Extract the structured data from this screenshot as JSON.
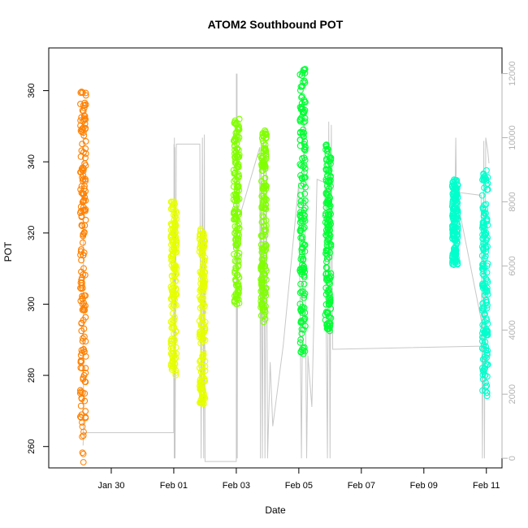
{
  "chart_data": {
    "type": "scatter",
    "title": "ATOM2 Southbound POT",
    "xlabel": "Date",
    "ylabel": "POT",
    "xlim": [
      "2015-01-28T00:00",
      "2015-02-11T12:00"
    ],
    "ylim": [
      254,
      372
    ],
    "x_ticks": [
      {
        "value": "2015-01-30T00:00",
        "label": "Jan 30"
      },
      {
        "value": "2015-02-01T00:00",
        "label": "Feb 01"
      },
      {
        "value": "2015-02-03T00:00",
        "label": "Feb 03"
      },
      {
        "value": "2015-02-05T00:00",
        "label": "Feb 05"
      },
      {
        "value": "2015-02-07T00:00",
        "label": "Feb 07"
      },
      {
        "value": "2015-02-09T00:00",
        "label": "Feb 09"
      },
      {
        "value": "2015-02-11T00:00",
        "label": "Feb 11"
      }
    ],
    "y_ticks": [
      260,
      280,
      300,
      320,
      340,
      360
    ],
    "secondary_axis": {
      "ylim": [
        -300,
        12800
      ],
      "ticks": [
        0,
        2000,
        4000,
        6000,
        8000,
        10000,
        12000
      ],
      "color": "#b3b3b3",
      "line_color": "#c8c8c8"
    },
    "grid": false,
    "secondary_line": [
      [
        "2015-01-29T02:24",
        400
      ],
      [
        "2015-01-29T02:29",
        600
      ],
      [
        "2015-01-29T02:34",
        700
      ],
      [
        "2015-01-29T02:38",
        10200
      ],
      [
        "2015-01-29T02:43",
        800
      ],
      [
        "2015-02-01T00:00",
        800
      ],
      [
        "2015-02-01T00:10",
        9800
      ],
      [
        "2015-02-01T00:20",
        0
      ],
      [
        "2015-02-01T00:30",
        10000
      ],
      [
        "2015-02-01T00:40",
        0
      ],
      [
        "2015-02-01T00:50",
        9700
      ],
      [
        "2015-02-01T01:00",
        0
      ],
      [
        "2015-02-01T02:00",
        9800
      ],
      [
        "2015-02-01T10:00",
        9800
      ],
      [
        "2015-02-01T20:00",
        9800
      ],
      [
        "2015-02-01T21:00",
        0
      ],
      [
        "2015-02-01T22:00",
        10000
      ],
      [
        "2015-02-01T23:00",
        0
      ],
      [
        "2015-02-01T23:30",
        10100
      ],
      [
        "2015-02-02T00:00",
        0
      ],
      [
        "2015-02-02T00:00",
        -100
      ],
      [
        "2015-02-03T00:00",
        -100
      ],
      [
        "2015-02-03T00:05",
        12000
      ],
      [
        "2015-02-03T00:10",
        0
      ],
      [
        "2015-02-03T00:15",
        12000
      ],
      [
        "2015-02-03T00:25",
        0
      ],
      [
        "2015-02-03T00:35",
        12000
      ],
      [
        "2015-02-03T00:45",
        0
      ],
      [
        "2015-02-03T01:00",
        7900
      ],
      [
        "2015-02-03T03:00",
        7600
      ],
      [
        "2015-02-03T18:00",
        9700
      ],
      [
        "2015-02-03T18:30",
        0
      ],
      [
        "2015-02-03T19:00",
        9800
      ],
      [
        "2015-02-03T20:00",
        0
      ],
      [
        "2015-02-03T21:00",
        9900
      ],
      [
        "2015-02-03T22:00",
        0
      ],
      [
        "2015-02-03T23:00",
        9900
      ],
      [
        "2015-02-04T00:00",
        0
      ],
      [
        "2015-02-04T02:00",
        3000
      ],
      [
        "2015-02-04T04:00",
        1000
      ],
      [
        "2015-02-04T12:00",
        3500
      ],
      [
        "2015-02-05T00:00",
        8600
      ],
      [
        "2015-02-05T02:00",
        0
      ],
      [
        "2015-02-05T04:00",
        11000
      ],
      [
        "2015-02-05T06:00",
        0
      ],
      [
        "2015-02-05T07:00",
        3200
      ],
      [
        "2015-02-05T10:00",
        1600
      ],
      [
        "2015-02-05T14:00",
        8700
      ],
      [
        "2015-02-05T20:00",
        8600
      ],
      [
        "2015-02-05T22:00",
        0
      ],
      [
        "2015-02-05T23:00",
        10500
      ],
      [
        "2015-02-06T00:00",
        0
      ],
      [
        "2015-02-06T01:00",
        10400
      ],
      [
        "2015-02-06T02:00",
        3400
      ],
      [
        "2015-02-11T00:00",
        3500
      ],
      [
        "2015-02-10T00:00",
        8400
      ],
      [
        "2015-02-10T00:30",
        10000
      ],
      [
        "2015-02-10T01:00",
        8300
      ],
      [
        "2015-02-10T20:00",
        8200
      ],
      [
        "2015-02-10T21:00",
        0
      ],
      [
        "2015-02-10T22:00",
        9900
      ],
      [
        "2015-02-10T22:30",
        0
      ],
      [
        "2015-02-10T23:30",
        10000
      ],
      [
        "2015-02-11T01:00",
        9600
      ],
      [
        "2015-02-11T02:00",
        9200
      ]
    ],
    "series": [
      {
        "color": "#ff8000",
        "segments": [
          {
            "t": "2015-01-29T02:24",
            "dense": [
              268,
              360
            ],
            "sparse": [
              255,
              268
            ]
          }
        ]
      },
      {
        "color": "#e6ff00",
        "segments": [
          {
            "t": "2015-02-01T00:00",
            "dense": [
              280,
              329
            ]
          },
          {
            "t": "2015-02-01T22:00",
            "dense": [
              272,
              322
            ]
          }
        ]
      },
      {
        "color": "#80ff00",
        "segments": [
          {
            "t": "2015-02-03T00:10",
            "dense": [
              300,
              352
            ]
          },
          {
            "t": "2015-02-03T21:00",
            "dense": [
              295,
              349
            ]
          }
        ]
      },
      {
        "color": "#00ff33",
        "segments": [
          {
            "t": "2015-02-05T03:00",
            "dense": [
              286,
              367
            ]
          },
          {
            "t": "2015-02-05T22:30",
            "dense": [
              292,
              345
            ]
          }
        ]
      },
      {
        "color": "#00ffcc",
        "segments": [
          {
            "t": "2015-02-10T00:00",
            "dense": [
              311,
              335
            ]
          },
          {
            "t": "2015-02-10T23:00",
            "dense": [
              274,
              338
            ]
          }
        ]
      }
    ]
  }
}
